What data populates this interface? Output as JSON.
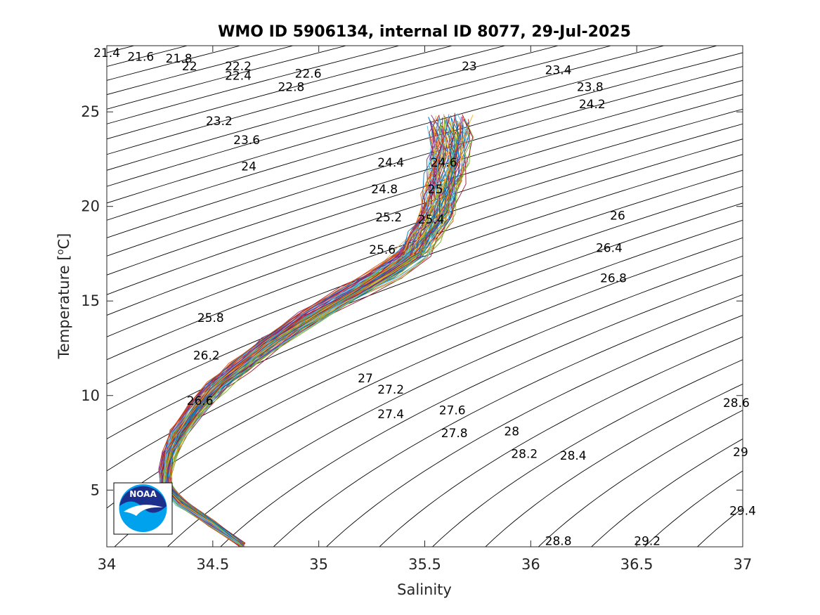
{
  "chart_data": {
    "type": "line",
    "title": "WMO ID 5906134, internal ID 8077, 29-Jul-2025",
    "xlabel": "Salinity",
    "ylabel_text": "Temperature [",
    "ylabel_sup": "o",
    "ylabel_unit": "C]",
    "xlim": [
      34,
      37
    ],
    "ylim": [
      2,
      28.5
    ],
    "x_ticks": [
      34,
      34.5,
      35,
      35.5,
      36,
      36.5,
      37
    ],
    "x_tick_labels": [
      "34",
      "34.5",
      "35",
      "35.5",
      "36",
      "36.5",
      "37"
    ],
    "y_ticks": [
      5,
      10,
      15,
      20,
      25
    ],
    "y_tick_labels": [
      "5",
      "10",
      "15",
      "20",
      "25"
    ],
    "grid": false,
    "isopycnal_labels": [
      {
        "text": "21.4",
        "s": 34.0,
        "t": 27.9
      },
      {
        "text": "21.6",
        "s": 34.16,
        "t": 27.7
      },
      {
        "text": "21.8",
        "s": 34.34,
        "t": 27.6
      },
      {
        "text": "22",
        "s": 34.39,
        "t": 27.2
      },
      {
        "text": "22.2",
        "s": 34.62,
        "t": 27.2
      },
      {
        "text": "22.4",
        "s": 34.62,
        "t": 26.7
      },
      {
        "text": "22.6",
        "s": 34.95,
        "t": 26.8
      },
      {
        "text": "22.8",
        "s": 34.87,
        "t": 26.1
      },
      {
        "text": "23",
        "s": 35.71,
        "t": 27.2
      },
      {
        "text": "23.4",
        "s": 36.13,
        "t": 27.0
      },
      {
        "text": "23.8",
        "s": 36.28,
        "t": 26.1
      },
      {
        "text": "24.2",
        "s": 36.29,
        "t": 25.2
      },
      {
        "text": "23.2",
        "s": 34.53,
        "t": 24.3
      },
      {
        "text": "23.6",
        "s": 34.66,
        "t": 23.3
      },
      {
        "text": "24",
        "s": 34.67,
        "t": 21.9
      },
      {
        "text": "24.4",
        "s": 35.34,
        "t": 22.1
      },
      {
        "text": "24.6",
        "s": 35.59,
        "t": 22.1
      },
      {
        "text": "24.8",
        "s": 35.31,
        "t": 20.7
      },
      {
        "text": "25",
        "s": 35.55,
        "t": 20.7
      },
      {
        "text": "25.2",
        "s": 35.33,
        "t": 19.2
      },
      {
        "text": "25.4",
        "s": 35.53,
        "t": 19.1
      },
      {
        "text": "25.6",
        "s": 35.3,
        "t": 17.5
      },
      {
        "text": "26",
        "s": 36.41,
        "t": 19.3
      },
      {
        "text": "26.4",
        "s": 36.37,
        "t": 17.6
      },
      {
        "text": "26.8",
        "s": 36.39,
        "t": 16.0
      },
      {
        "text": "25.8",
        "s": 34.49,
        "t": 13.9
      },
      {
        "text": "26.2",
        "s": 34.47,
        "t": 11.9
      },
      {
        "text": "26.6",
        "s": 34.44,
        "t": 9.5
      },
      {
        "text": "27",
        "s": 35.22,
        "t": 10.7
      },
      {
        "text": "27.2",
        "s": 35.34,
        "t": 10.1
      },
      {
        "text": "27.4",
        "s": 35.34,
        "t": 8.8
      },
      {
        "text": "27.6",
        "s": 35.63,
        "t": 9.0
      },
      {
        "text": "27.8",
        "s": 35.64,
        "t": 7.8
      },
      {
        "text": "28",
        "s": 35.91,
        "t": 7.9
      },
      {
        "text": "28.2",
        "s": 35.97,
        "t": 6.7
      },
      {
        "text": "28.4",
        "s": 36.2,
        "t": 6.6
      },
      {
        "text": "28.6",
        "s": 36.97,
        "t": 9.4
      },
      {
        "text": "29",
        "s": 36.99,
        "t": 6.8
      },
      {
        "text": "29.4",
        "s": 37.0,
        "t": 3.7
      },
      {
        "text": "28.8",
        "s": 36.13,
        "t": 2.1
      },
      {
        "text": "29.2",
        "s": 36.55,
        "t": 2.1
      }
    ],
    "mean_profile": {
      "salinity": [
        34.64,
        34.5,
        34.35,
        34.28,
        34.28,
        34.3,
        34.34,
        34.44,
        34.52,
        34.63,
        34.78,
        34.97,
        35.17,
        35.32,
        35.45,
        35.5,
        35.56,
        35.58,
        35.6,
        35.62,
        35.63,
        35.62
      ],
      "temperature": [
        2.1,
        3.2,
        4.4,
        5.2,
        6.0,
        7.0,
        8.0,
        9.5,
        10.5,
        11.5,
        12.8,
        14.2,
        15.5,
        16.5,
        17.5,
        18.5,
        19.5,
        20.5,
        21.5,
        22.5,
        23.5,
        24.5
      ]
    },
    "profile_colors": [
      "#0072bd",
      "#d95319",
      "#edb120",
      "#7e2f8e",
      "#77ac30",
      "#4dbeee",
      "#a2142f"
    ]
  },
  "logo": {
    "text": "NOAA"
  }
}
